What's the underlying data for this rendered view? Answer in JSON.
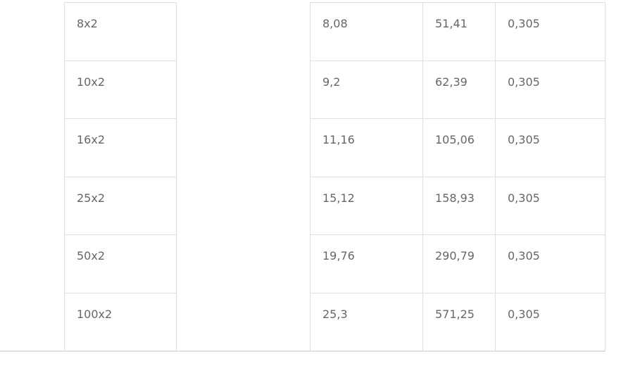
{
  "table": {
    "rows": [
      {
        "size": "8x2",
        "c1": "8,08",
        "c2": "51,41",
        "c3": "0,305"
      },
      {
        "size": "10x2",
        "c1": "9,2",
        "c2": "62,39",
        "c3": "0,305"
      },
      {
        "size": "16x2",
        "c1": "11,16",
        "c2": "105,06",
        "c3": "0,305"
      },
      {
        "size": "25x2",
        "c1": "15,12",
        "c2": "158,93",
        "c3": "0,305"
      },
      {
        "size": "50x2",
        "c1": "19,76",
        "c2": "290,79",
        "c3": "0,305"
      },
      {
        "size": "100x2",
        "c1": "25,3",
        "c2": "571,25",
        "c3": "0,305"
      }
    ]
  },
  "colors": {
    "border": "#e0e0e0",
    "text": "#666666"
  }
}
